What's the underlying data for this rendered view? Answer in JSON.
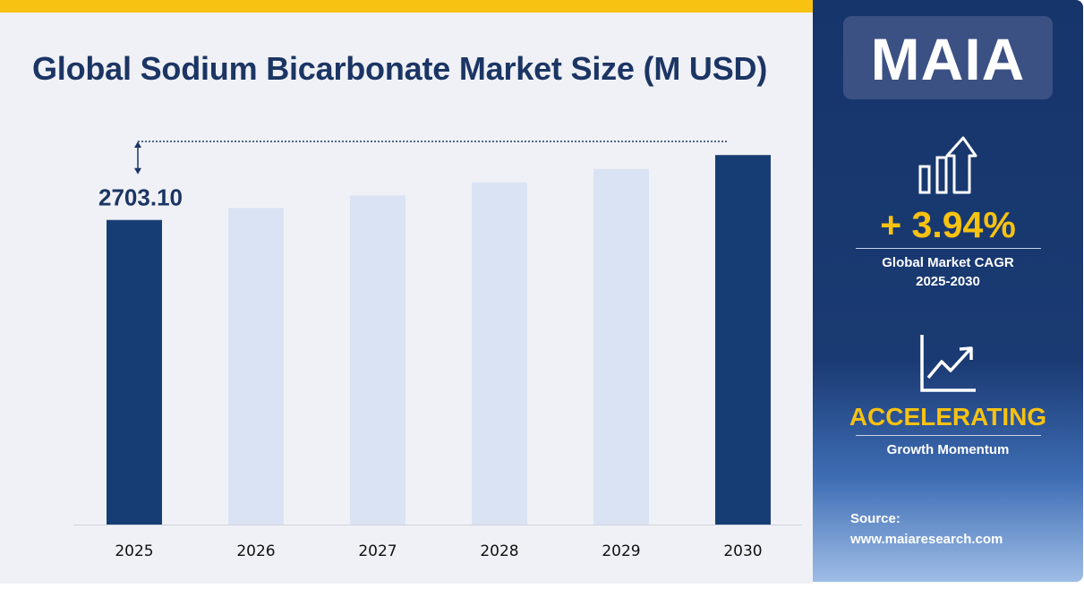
{
  "title": "Global Sodium Bicarbonate Market Size (M USD)",
  "chart_data": {
    "type": "bar",
    "title": "Global Sodium Bicarbonate Market Size (M USD)",
    "categories": [
      "2025",
      "2026",
      "2027",
      "2028",
      "2029",
      "2030"
    ],
    "values": [
      2703.1,
      2809.6,
      2920.3,
      3035.4,
      3155.0,
      3279.3
    ],
    "value_labels": [
      "2703.10",
      "",
      "",
      "",
      "",
      ""
    ],
    "highlighted": [
      true,
      false,
      false,
      false,
      false,
      true
    ],
    "ylim": [
      0,
      3400
    ],
    "grid": false,
    "legend": "none",
    "colors": {
      "highlight": "#173e74",
      "base": "#dae3f3",
      "axis": "#d0d3da",
      "arrow": "#1b3564"
    }
  },
  "sidebar": {
    "logo": "MAIA",
    "cagr": {
      "value": "+ 3.94%",
      "label_line1": "Global Market CAGR",
      "label_line2": "2025-2030",
      "icon": "growth-bars-arrow-icon"
    },
    "momentum": {
      "value": "ACCELERATING",
      "label": "Growth Momentum",
      "icon": "trend-line-chart-icon"
    },
    "source_label": "Source:",
    "source_url": "www.maiaresearch.com"
  },
  "colors": {
    "accent_yellow": "#f7c211",
    "navy": "#1b3564",
    "panel_bg": "#f0f1f6"
  }
}
